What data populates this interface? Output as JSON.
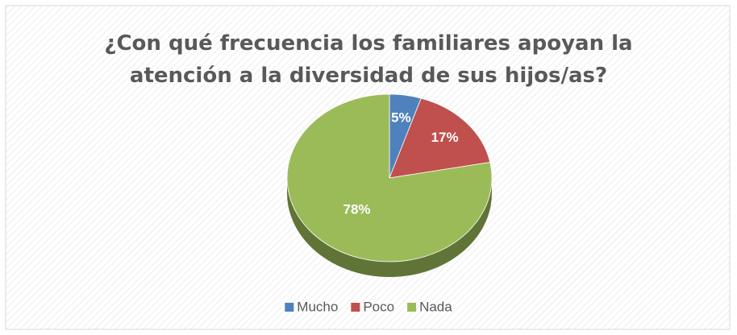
{
  "chart_data": {
    "type": "pie",
    "title": "¿Con qué frecuencia los familiares apoyan la atención a la diversidad de sus hijos/as?",
    "categories": [
      "Mucho",
      "Poco",
      "Nada"
    ],
    "values": [
      5,
      17,
      78
    ],
    "value_labels": [
      "5%",
      "17%",
      "78%"
    ],
    "colors": [
      "#4f81bd",
      "#c0504d",
      "#9bbb59"
    ],
    "legend": "bottom"
  }
}
